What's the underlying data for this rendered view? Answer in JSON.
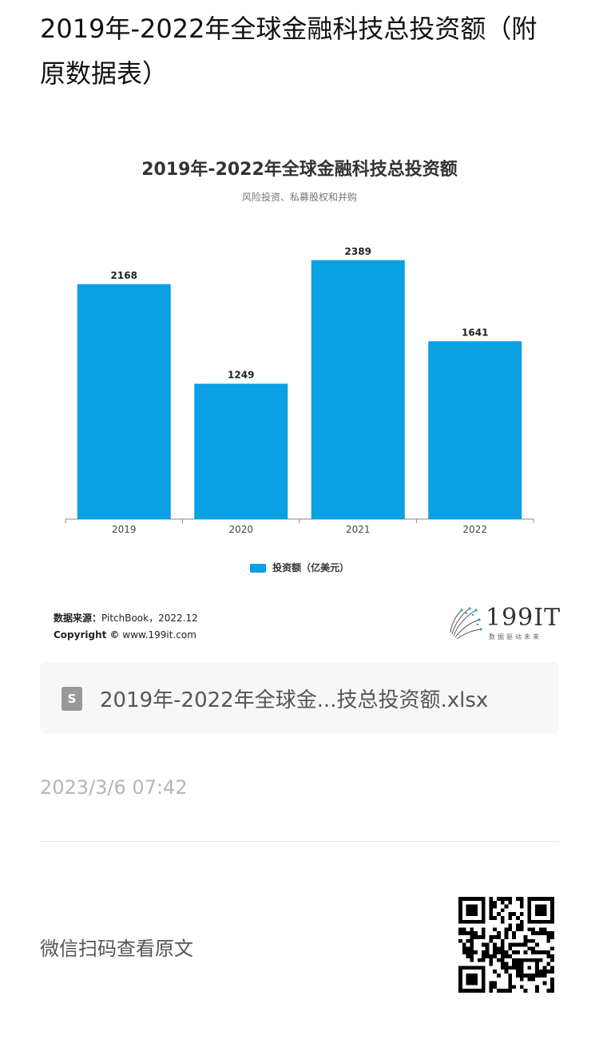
{
  "article": {
    "title": "2019年-2022年全球金融科技总投资额（附原数据表）"
  },
  "chart_data": {
    "type": "bar",
    "title": "2019年-2022年全球金融科技总投资额",
    "subtitle": "风险投资、私募股权和并购",
    "categories": [
      "2019",
      "2020",
      "2021",
      "2022"
    ],
    "series": [
      {
        "name": "投资额（亿美元）",
        "values": [
          2168,
          1249,
          2389,
          1641
        ],
        "color": "#0b9fe3"
      }
    ],
    "ylim": [
      0,
      2800
    ],
    "grid": false,
    "legend": "bottom"
  },
  "source": {
    "label": "数据来源：",
    "value": "PitchBook，2022.12",
    "copyright_label": "Copyright ©",
    "copyright_value": "www.199it.com"
  },
  "brand": {
    "name": "199IT",
    "slogan": "数据驱动未来",
    "logo_icon": "dandelion-logo-icon"
  },
  "attachment": {
    "icon": "spreadsheet-file-icon",
    "icon_letter": "S",
    "file_name": "2019年-2022年全球金...技总投资额.xlsx"
  },
  "meta": {
    "timestamp": "2023/3/6 07:42"
  },
  "footer": {
    "scan_text": "微信扫码查看原文",
    "qr_icon": "qr-code-icon"
  }
}
